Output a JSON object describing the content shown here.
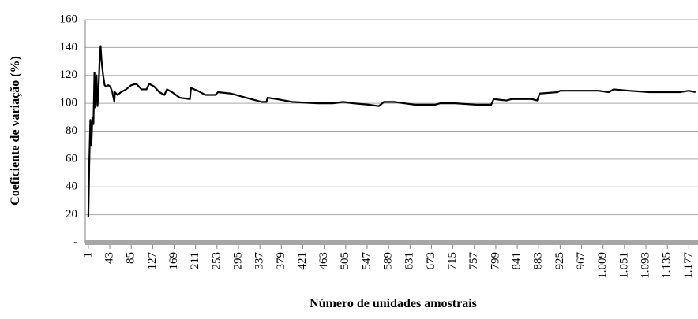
{
  "chart_data": {
    "type": "line",
    "xlabel": "Número de unidades amostrais",
    "ylabel": "Coeficiente de variação (%)",
    "series": [
      {
        "name": "Coeficiente de variação",
        "color": "#000000",
        "x": [
          1,
          3,
          5,
          7,
          9,
          11,
          13,
          15,
          17,
          19,
          21,
          23,
          25,
          27,
          30,
          33,
          36,
          40,
          44,
          48,
          52,
          53,
          58,
          65,
          75,
          85,
          95,
          105,
          115,
          120,
          130,
          140,
          150,
          155,
          165,
          180,
          200,
          202,
          215,
          230,
          250,
          255,
          280,
          300,
          320,
          340,
          350,
          352,
          370,
          400,
          450,
          480,
          500,
          520,
          550,
          570,
          580,
          600,
          640,
          680,
          690,
          720,
          760,
          790,
          795,
          820,
          830,
          870,
          880,
          885,
          920,
          925,
          1000,
          1020,
          1030,
          1060,
          1100,
          1140,
          1160,
          1177,
          1190
        ],
        "values": [
          18,
          60,
          88,
          70,
          90,
          85,
          122,
          97,
          120,
          98,
          110,
          130,
          141,
          130,
          120,
          113,
          112,
          113,
          112,
          108,
          101,
          108,
          106,
          108,
          110,
          113,
          114,
          110,
          110,
          114,
          112,
          108,
          106,
          110,
          108,
          104,
          103,
          111,
          109,
          106,
          106,
          108,
          107,
          105,
          103,
          101,
          101,
          104,
          103,
          101,
          100,
          100,
          101,
          100,
          99,
          98,
          101,
          101,
          99,
          99,
          100,
          100,
          99,
          99,
          103,
          102,
          103,
          103,
          102,
          107,
          108,
          109,
          109,
          108,
          110,
          109,
          108,
          108,
          108,
          109,
          108
        ]
      }
    ],
    "xlim": [
      -5,
      1195
    ],
    "xticks": [
      1,
      43,
      85,
      127,
      169,
      211,
      253,
      295,
      337,
      379,
      421,
      463,
      505,
      547,
      589,
      631,
      673,
      715,
      757,
      799,
      841,
      883,
      925,
      967,
      {
        "value": 1009,
        "label": "1.009"
      },
      {
        "value": 1051,
        "label": "1.051"
      },
      {
        "value": 1093,
        "label": "1.093"
      },
      {
        "value": 1135,
        "label": "1.135"
      },
      {
        "value": 1177,
        "label": "1.177"
      }
    ],
    "ylim": [
      0,
      160
    ],
    "yticks": [
      {
        "value": 0,
        "label": "-"
      },
      20,
      40,
      60,
      80,
      100,
      120,
      140,
      160
    ],
    "grid": true
  }
}
